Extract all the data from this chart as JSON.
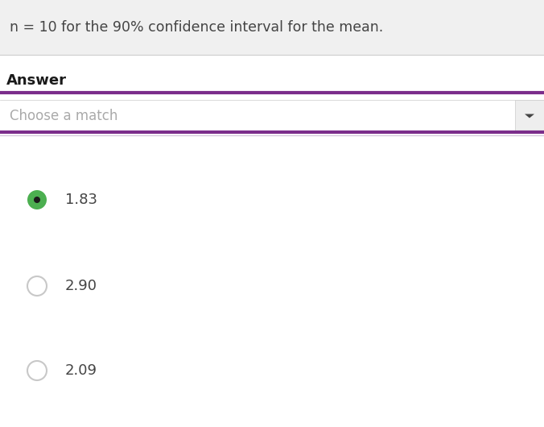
{
  "title_text": "n = 10 for the 90% confidence interval for the mean.",
  "answer_label": "Answer",
  "dropdown_label": "Choose a match",
  "options": [
    "1.83",
    "2.90",
    "2.09"
  ],
  "selected_index": 0,
  "bg_color": "#ffffff",
  "header_bg": "#f0f0f0",
  "title_fontsize": 12.5,
  "answer_fontsize": 13,
  "option_fontsize": 13,
  "dropdown_fontsize": 12,
  "purple_color": "#7b2d8b",
  "light_purple": "#d0c0d8",
  "selected_fill": "#4caf50",
  "selected_dot": "#1a1a1a",
  "unselected_fill": "#ffffff",
  "unselected_border": "#c8c8c8",
  "text_color": "#444444",
  "answer_color": "#1a1a1a",
  "dropdown_text_color": "#aaaaaa",
  "dropdown_bg": "#ffffff",
  "dropdown_border": "#cccccc",
  "arrow_color": "#444444",
  "arrow_box_bg": "#eeeeee",
  "separator_color": "#cccccc"
}
